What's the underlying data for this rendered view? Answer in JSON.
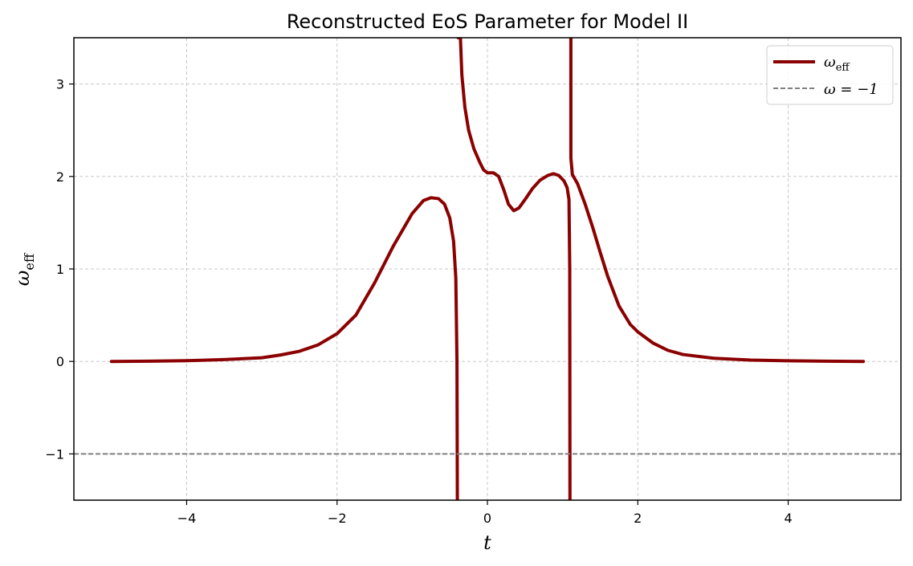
{
  "chart_data": {
    "type": "line",
    "title": "Reconstructed EoS Parameter for Model II",
    "xlabel": "t",
    "ylabel": "ω",
    "ylabel_sub": "eff",
    "xlim": [
      -5.5,
      5.5
    ],
    "ylim": [
      -1.5,
      3.5
    ],
    "xticks": [
      -4,
      -2,
      0,
      2,
      4
    ],
    "yticks": [
      -1,
      0,
      1,
      2,
      3
    ],
    "xtick_labels": [
      "−4",
      "−2",
      "0",
      "2",
      "4"
    ],
    "ytick_labels": [
      "−1",
      "0",
      "1",
      "2",
      "3"
    ],
    "grid": true,
    "legend_position": "top-right",
    "series": [
      {
        "name": "ω",
        "name_sub": "eff",
        "color": "#8b0000",
        "style": "solid",
        "segments": [
          [
            [
              -5.0,
              0.0
            ],
            [
              -4.5,
              0.003
            ],
            [
              -4.0,
              0.008
            ],
            [
              -3.5,
              0.02
            ],
            [
              -3.0,
              0.04
            ],
            [
              -2.75,
              0.07
            ],
            [
              -2.5,
              0.11
            ],
            [
              -2.25,
              0.18
            ],
            [
              -2.0,
              0.3
            ],
            [
              -1.75,
              0.5
            ],
            [
              -1.5,
              0.85
            ],
            [
              -1.25,
              1.25
            ],
            [
              -1.0,
              1.6
            ],
            [
              -0.85,
              1.74
            ],
            [
              -0.75,
              1.77
            ],
            [
              -0.65,
              1.76
            ],
            [
              -0.57,
              1.7
            ],
            [
              -0.5,
              1.55
            ],
            [
              -0.45,
              1.3
            ],
            [
              -0.42,
              0.9
            ],
            [
              -0.405,
              0.0
            ],
            [
              -0.4,
              -1.5
            ]
          ],
          [
            [
              -0.39,
              3.5
            ],
            [
              -0.36,
              3.52
            ],
            [
              -0.34,
              3.1
            ],
            [
              -0.3,
              2.75
            ],
            [
              -0.25,
              2.5
            ],
            [
              -0.18,
              2.3
            ],
            [
              -0.1,
              2.15
            ],
            [
              -0.05,
              2.07
            ],
            [
              0.0,
              2.04
            ],
            [
              0.08,
              2.04
            ],
            [
              0.15,
              2.0
            ],
            [
              0.22,
              1.85
            ],
            [
              0.28,
              1.7
            ],
            [
              0.35,
              1.63
            ],
            [
              0.42,
              1.66
            ],
            [
              0.5,
              1.75
            ],
            [
              0.6,
              1.87
            ],
            [
              0.7,
              1.96
            ],
            [
              0.8,
              2.01
            ],
            [
              0.88,
              2.03
            ],
            [
              0.95,
              2.01
            ],
            [
              1.02,
              1.95
            ],
            [
              1.06,
              1.88
            ],
            [
              1.085,
              1.75
            ],
            [
              1.095,
              1.0
            ],
            [
              1.098,
              -1.5
            ]
          ],
          [
            [
              1.11,
              3.5
            ],
            [
              1.11,
              2.2
            ],
            [
              1.13,
              2.02
            ],
            [
              1.2,
              1.92
            ],
            [
              1.3,
              1.7
            ],
            [
              1.4,
              1.45
            ],
            [
              1.5,
              1.18
            ],
            [
              1.6,
              0.92
            ],
            [
              1.75,
              0.6
            ],
            [
              1.9,
              0.4
            ],
            [
              2.0,
              0.32
            ],
            [
              2.2,
              0.2
            ],
            [
              2.4,
              0.12
            ],
            [
              2.6,
              0.075
            ],
            [
              3.0,
              0.035
            ],
            [
              3.5,
              0.015
            ],
            [
              4.0,
              0.007
            ],
            [
              4.5,
              0.003
            ],
            [
              5.0,
              0.0
            ]
          ]
        ]
      },
      {
        "name": "ω = −1",
        "color": "#808080",
        "style": "dashed",
        "y_const": -1
      }
    ]
  }
}
